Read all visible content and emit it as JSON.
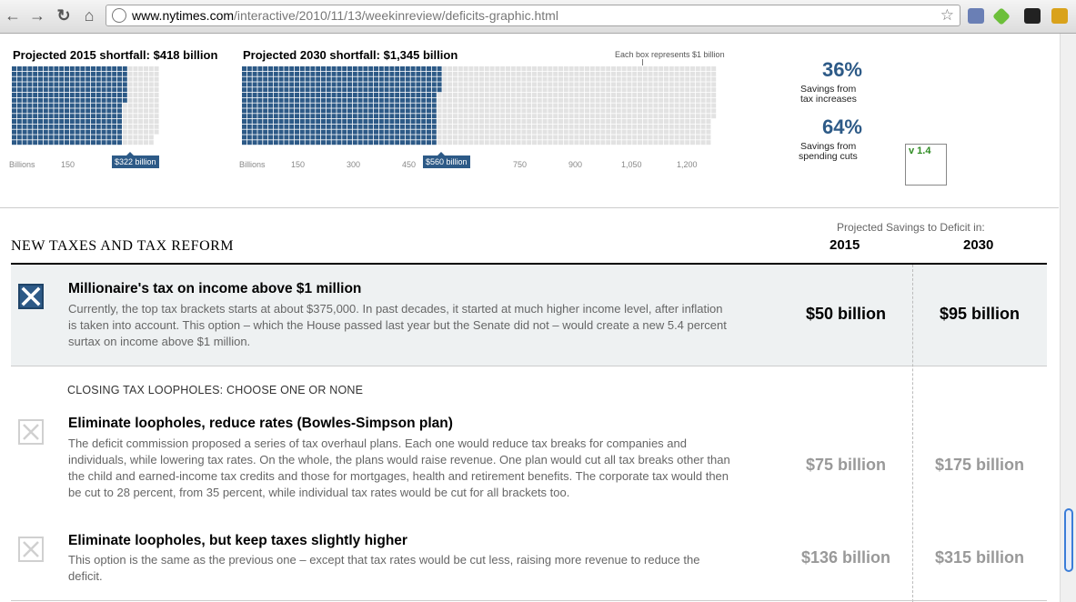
{
  "browser": {
    "url_domain": "www.nytimes.com",
    "url_path": "/interactive/2010/11/13/weekinreview/deficits-graphic.html"
  },
  "graphic": {
    "shortfall_2015": {
      "title": "Projected 2015 shortfall: $418 billion",
      "total_billion": 418,
      "filled_billion": 322,
      "axis": [
        "Billions",
        "150"
      ],
      "marker": "$322 billion"
    },
    "shortfall_2030": {
      "title": "Projected 2030 shortfall: $1,345 billion",
      "total_billion": 1345,
      "filled_billion": 560,
      "axis": [
        "Billions",
        "150",
        "300",
        "450",
        "750",
        "900",
        "1,050",
        "1,200"
      ],
      "marker": "$560 billion"
    },
    "box_note": "Each box represents $1 billion",
    "colors": {
      "filled": "#2d5a87",
      "empty": "#e2e2e2"
    },
    "tax_pct": "36%",
    "tax_pct_label_1": "Savings from",
    "tax_pct_label_2": "tax increases",
    "spend_pct": "64%",
    "spend_pct_label_1": "Savings from",
    "spend_pct_label_2": "spending cuts",
    "version": "v 1.4"
  },
  "section": {
    "title": "NEW TAXES AND TAX REFORM",
    "projected_header": "Projected Savings to Deficit in:",
    "year_1": "2015",
    "year_2": "2030"
  },
  "options": [
    {
      "title": "Millionaire's tax on income above $1 million",
      "description": "Currently, the top tax brackets starts at about $375,000. In past decades, it started at much higher income level, after inflation is taken into account. This option – which the House passed last year but the Senate did not – would create a new 5.4 percent surtax on income above $1 million.",
      "val_2015": "$50 billion",
      "val_2030": "$95 billion",
      "selected": true
    },
    {
      "title": "Eliminate loopholes, reduce rates (Bowles-Simpson plan)",
      "description": "The deficit commission proposed a series of tax overhaul plans. Each one would reduce tax breaks for companies and individuals, while lowering tax rates. On the whole, the plans would raise revenue. One plan would cut all tax breaks other than the child and earned-income tax credits and those for mortgages, health and retirement benefits. The corporate tax would then be cut to 28 percent, from 35 percent, while individual tax rates would be cut for all brackets too.",
      "val_2015": "$75 billion",
      "val_2030": "$175 billion",
      "selected": false
    },
    {
      "title": "Eliminate loopholes, but keep taxes slightly higher",
      "description": "This option is the same as the previous one – except that tax rates would be cut less, raising more revenue to reduce the deficit.",
      "val_2015": "$136 billion",
      "val_2030": "$315 billion",
      "selected": false
    }
  ],
  "subhead": "CLOSING TAX LOOPHOLES: CHOOSE ONE OR NONE"
}
